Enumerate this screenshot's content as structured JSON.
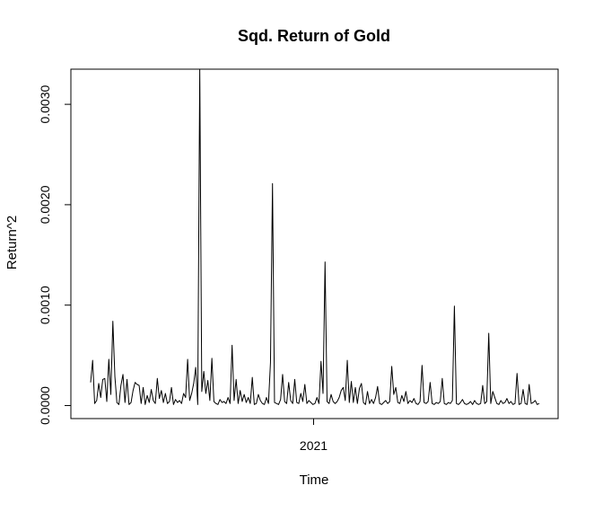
{
  "chart_data": {
    "type": "line",
    "title": "Sqd. Return of Gold",
    "xlabel": "Time",
    "ylabel": "Return^2",
    "x_ticks": [
      "2021"
    ],
    "y_ticks": [
      "0.0000",
      "0.0010",
      "0.0020",
      "0.0030"
    ],
    "y_tick_values": [
      0,
      0.001,
      0.002,
      0.003
    ],
    "ylim": [
      -0.00013,
      0.00335
    ],
    "grid": false,
    "legend": "none",
    "line_color": "#000000",
    "series": [
      {
        "values": [
          0.00023,
          0.00045,
          2e-05,
          5e-05,
          0.00022,
          8e-05,
          0.00026,
          0.00027,
          4e-05,
          0.00046,
          0.00011,
          0.00084,
          0.00029,
          3e-05,
          1e-05,
          0.0002,
          0.00031,
          3e-05,
          0.00026,
          1e-05,
          3e-05,
          0.00015,
          0.00023,
          0.00021,
          0.0002,
          2e-05,
          0.00018,
          1e-05,
          0.0001,
          3e-05,
          0.00016,
          5e-05,
          2e-05,
          0.00027,
          7e-05,
          0.00015,
          3e-05,
          0.00012,
          2e-05,
          4e-05,
          0.00018,
          1e-05,
          6e-05,
          3e-05,
          5e-05,
          2e-05,
          0.00012,
          8e-05,
          0.00046,
          5e-05,
          0.00012,
          0.00022,
          0.00038,
          1e-05,
          0.00335,
          0.00014,
          0.00034,
          0.00012,
          0.00025,
          5e-05,
          0.00047,
          4e-05,
          2e-05,
          1e-05,
          6e-05,
          3e-05,
          4e-05,
          2e-05,
          8e-05,
          2e-05,
          0.0006,
          5e-05,
          0.00026,
          2e-05,
          0.00015,
          4e-05,
          0.00011,
          3e-05,
          8e-05,
          2e-05,
          0.00028,
          1e-05,
          2e-05,
          0.00011,
          5e-05,
          2e-05,
          1e-05,
          8e-05,
          2e-05,
          0.00043,
          0.00221,
          3e-05,
          2e-05,
          1e-05,
          6e-05,
          0.00031,
          4e-05,
          2e-05,
          0.00023,
          5e-05,
          2e-05,
          0.00026,
          3e-05,
          2e-05,
          0.00012,
          4e-05,
          0.00021,
          2e-05,
          5e-05,
          3e-05,
          1e-05,
          2e-05,
          8e-05,
          2e-05,
          0.00044,
          0.00012,
          0.00143,
          4e-05,
          2e-05,
          0.00011,
          4e-05,
          2e-05,
          4e-05,
          8e-05,
          0.00015,
          0.00018,
          5e-05,
          0.00045,
          3e-05,
          0.00024,
          3e-05,
          0.00018,
          2e-05,
          0.00017,
          0.00022,
          3e-05,
          1e-05,
          0.00014,
          2e-05,
          6e-05,
          2e-05,
          8e-05,
          0.00019,
          2e-05,
          1e-05,
          3e-05,
          5e-05,
          2e-05,
          4e-05,
          0.00039,
          0.00011,
          0.00018,
          3e-05,
          2e-05,
          0.0001,
          4e-05,
          0.00014,
          2e-05,
          5e-05,
          3e-05,
          7e-05,
          2e-05,
          1e-05,
          4e-05,
          0.0004,
          3e-05,
          2e-05,
          4e-05,
          0.00023,
          2e-05,
          1e-05,
          3e-05,
          2e-05,
          4e-05,
          0.00027,
          2e-05,
          1e-05,
          3e-05,
          2e-05,
          5e-05,
          0.00099,
          2e-05,
          1e-05,
          3e-05,
          6e-05,
          2e-05,
          1e-05,
          2e-05,
          4e-05,
          1e-05,
          5e-05,
          2e-05,
          1e-05,
          2e-05,
          0.0002,
          2e-05,
          4e-05,
          0.00072,
          2e-05,
          0.00014,
          8e-05,
          2e-05,
          1e-05,
          5e-05,
          2e-05,
          3e-05,
          7e-05,
          2e-05,
          4e-05,
          1e-05,
          2e-05,
          0.00032,
          1e-05,
          2e-05,
          0.00016,
          2e-05,
          1e-05,
          0.00021,
          2e-05,
          3e-05,
          5e-05,
          1e-05,
          2e-05
        ]
      }
    ]
  }
}
